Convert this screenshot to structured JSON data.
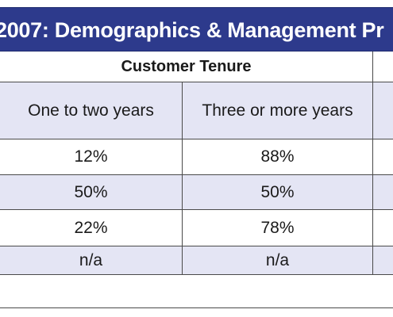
{
  "title": "2007: Demographics & Management Pr",
  "group_header": "Customer Tenure",
  "columns": [
    "One to two years",
    "Three or more years"
  ],
  "rows": [
    [
      "12%",
      "88%"
    ],
    [
      "50%",
      "50%"
    ],
    [
      "22%",
      "78%"
    ],
    [
      "n/a",
      "n/a"
    ]
  ],
  "colors": {
    "title_background": "#2d3a8c",
    "title_text": "#ffffff",
    "band": "#e4e5f4",
    "rule": "#4a4a4a"
  }
}
